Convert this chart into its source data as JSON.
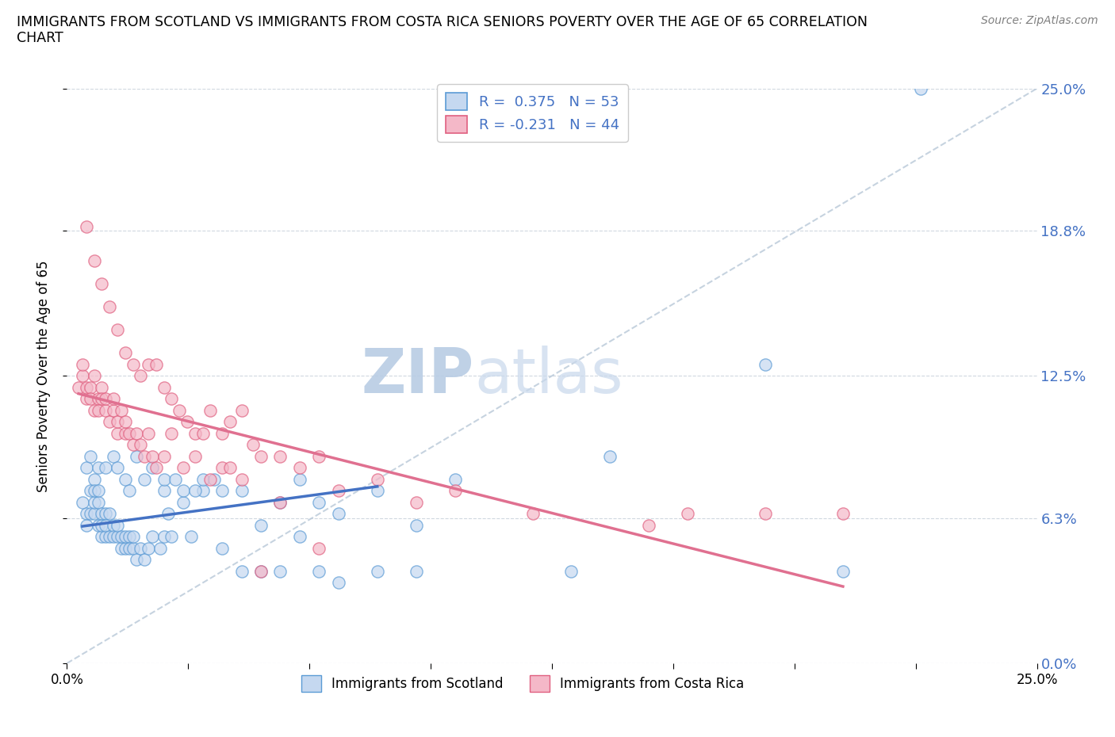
{
  "title": "IMMIGRANTS FROM SCOTLAND VS IMMIGRANTS FROM COSTA RICA SENIORS POVERTY OVER THE AGE OF 65 CORRELATION\nCHART",
  "source": "Source: ZipAtlas.com",
  "ylabel": "Seniors Poverty Over the Age of 65",
  "xlim": [
    0.0,
    0.25
  ],
  "ylim": [
    0.0,
    0.25
  ],
  "ytick_labels": [
    "0.0%",
    "6.3%",
    "12.5%",
    "18.8%",
    "25.0%"
  ],
  "ytick_values": [
    0.0,
    0.063,
    0.125,
    0.188,
    0.25
  ],
  "R_scotland": 0.375,
  "N_scotland": 53,
  "R_costa_rica": -0.231,
  "N_costa_rica": 44,
  "color_scotland_fill": "#c5d8f0",
  "color_scotland_edge": "#5b9bd5",
  "color_costa_rica_fill": "#f4b8c8",
  "color_costa_rica_edge": "#e06080",
  "color_trend_scotland": "#4472c4",
  "color_trend_costa_rica": "#e07090",
  "color_trend_dashed": "#b8c8d8",
  "legend_label_scotland": "Immigrants from Scotland",
  "legend_label_costa_rica": "Immigrants from Costa Rica",
  "watermark_zip": "ZIP",
  "watermark_atlas": "atlas",
  "watermark_color_zip": "#c8d8ec",
  "watermark_color_atlas": "#c8d8ec",
  "scotland_x": [
    0.004,
    0.005,
    0.005,
    0.006,
    0.006,
    0.007,
    0.007,
    0.007,
    0.008,
    0.008,
    0.009,
    0.009,
    0.009,
    0.01,
    0.01,
    0.01,
    0.011,
    0.011,
    0.012,
    0.012,
    0.013,
    0.013,
    0.014,
    0.014,
    0.015,
    0.015,
    0.016,
    0.016,
    0.017,
    0.017,
    0.018,
    0.019,
    0.02,
    0.021,
    0.022,
    0.024,
    0.025,
    0.026,
    0.027,
    0.03,
    0.032,
    0.035,
    0.04,
    0.045,
    0.05,
    0.055,
    0.06,
    0.065,
    0.07,
    0.08,
    0.09,
    0.13,
    0.2
  ],
  "scotland_y": [
    0.07,
    0.065,
    0.06,
    0.075,
    0.065,
    0.08,
    0.065,
    0.07,
    0.07,
    0.06,
    0.055,
    0.065,
    0.06,
    0.065,
    0.055,
    0.06,
    0.055,
    0.065,
    0.06,
    0.055,
    0.055,
    0.06,
    0.05,
    0.055,
    0.05,
    0.055,
    0.055,
    0.05,
    0.05,
    0.055,
    0.045,
    0.05,
    0.045,
    0.05,
    0.055,
    0.05,
    0.055,
    0.065,
    0.055,
    0.07,
    0.055,
    0.075,
    0.05,
    0.04,
    0.04,
    0.04,
    0.055,
    0.04,
    0.035,
    0.04,
    0.04,
    0.04,
    0.04
  ],
  "costa_rica_x": [
    0.003,
    0.004,
    0.004,
    0.005,
    0.005,
    0.006,
    0.006,
    0.007,
    0.007,
    0.008,
    0.008,
    0.009,
    0.009,
    0.01,
    0.01,
    0.011,
    0.012,
    0.012,
    0.013,
    0.013,
    0.014,
    0.015,
    0.015,
    0.016,
    0.017,
    0.018,
    0.019,
    0.02,
    0.021,
    0.022,
    0.023,
    0.025,
    0.027,
    0.03,
    0.033,
    0.037,
    0.04,
    0.042,
    0.045,
    0.05,
    0.055,
    0.065,
    0.16,
    0.2
  ],
  "costa_rica_y": [
    0.12,
    0.125,
    0.13,
    0.115,
    0.12,
    0.12,
    0.115,
    0.125,
    0.11,
    0.115,
    0.11,
    0.12,
    0.115,
    0.11,
    0.115,
    0.105,
    0.11,
    0.115,
    0.1,
    0.105,
    0.11,
    0.1,
    0.105,
    0.1,
    0.095,
    0.1,
    0.095,
    0.09,
    0.1,
    0.09,
    0.085,
    0.09,
    0.1,
    0.085,
    0.09,
    0.08,
    0.085,
    0.085,
    0.08,
    0.04,
    0.07,
    0.05,
    0.065,
    0.065
  ],
  "scotland_extra_x": [
    0.005,
    0.006,
    0.007,
    0.008,
    0.008,
    0.01,
    0.012,
    0.013,
    0.015,
    0.016,
    0.018,
    0.02,
    0.022,
    0.025,
    0.025,
    0.028,
    0.03,
    0.033,
    0.035,
    0.038,
    0.04,
    0.045,
    0.05,
    0.055,
    0.06,
    0.065,
    0.07,
    0.08,
    0.09,
    0.1,
    0.14,
    0.18,
    0.22
  ],
  "scotland_extra_y": [
    0.085,
    0.09,
    0.075,
    0.085,
    0.075,
    0.085,
    0.09,
    0.085,
    0.08,
    0.075,
    0.09,
    0.08,
    0.085,
    0.075,
    0.08,
    0.08,
    0.075,
    0.075,
    0.08,
    0.08,
    0.075,
    0.075,
    0.06,
    0.07,
    0.08,
    0.07,
    0.065,
    0.075,
    0.06,
    0.08,
    0.09,
    0.13,
    0.25
  ],
  "costa_rica_extra_x": [
    0.005,
    0.007,
    0.009,
    0.011,
    0.013,
    0.015,
    0.017,
    0.019,
    0.021,
    0.023,
    0.025,
    0.027,
    0.029,
    0.031,
    0.033,
    0.035,
    0.037,
    0.04,
    0.042,
    0.045,
    0.048,
    0.05,
    0.055,
    0.06,
    0.065,
    0.07,
    0.08,
    0.09,
    0.1,
    0.12,
    0.15,
    0.18
  ],
  "costa_rica_extra_y": [
    0.19,
    0.175,
    0.165,
    0.155,
    0.145,
    0.135,
    0.13,
    0.125,
    0.13,
    0.13,
    0.12,
    0.115,
    0.11,
    0.105,
    0.1,
    0.1,
    0.11,
    0.1,
    0.105,
    0.11,
    0.095,
    0.09,
    0.09,
    0.085,
    0.09,
    0.075,
    0.08,
    0.07,
    0.075,
    0.065,
    0.06,
    0.065
  ]
}
